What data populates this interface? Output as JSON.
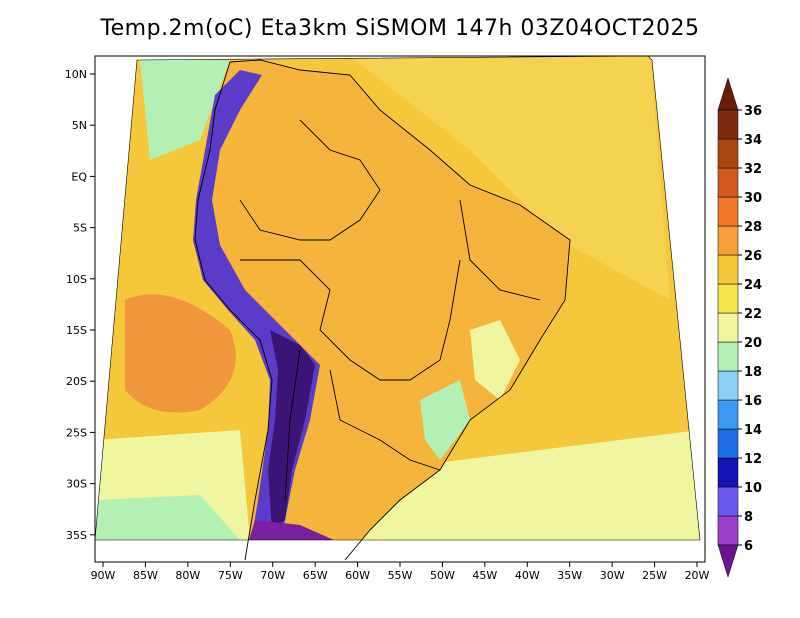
{
  "title": "Temp.2m(oC) Eta3km SiSMOM 147h 03Z04OCT2025",
  "map": {
    "lon_ticks": [
      "90W",
      "85W",
      "80W",
      "75W",
      "70W",
      "65W",
      "60W",
      "55W",
      "50W",
      "45W",
      "40W",
      "35W",
      "30W",
      "25W",
      "20W"
    ],
    "lat_ticks": [
      "10N",
      "5N",
      "EQ",
      "5S",
      "10S",
      "15S",
      "20S",
      "25S",
      "30S",
      "35S"
    ],
    "variable": "2 m temperature",
    "unit": "oC"
  },
  "colorbar": {
    "levels": [
      "6",
      "8",
      "10",
      "12",
      "14",
      "16",
      "18",
      "20",
      "22",
      "24",
      "26",
      "28",
      "30",
      "32",
      "34",
      "36"
    ],
    "colors": [
      "#7a1fa0",
      "#9a3fc8",
      "#6a5af0",
      "#1414b4",
      "#1e6ee6",
      "#3c9bf0",
      "#8ccff5",
      "#b4f0b4",
      "#f0f5a0",
      "#f5e650",
      "#f5c83c",
      "#f5a03c",
      "#f07828",
      "#d25a1e",
      "#aa4614",
      "#7d2d0f"
    ],
    "arrow_low": "#6a1490",
    "arrow_high": "#641e0a"
  },
  "field_colors": {
    "ocean_warm": "#f5c83c",
    "ocean_north": "#f5d250",
    "land_base": "#f5b43c",
    "pacific_hot": "#f0963c",
    "south_cool": "#f0f5a0",
    "andes_cold": "#5a3cc8",
    "andes_core": "#3c1478",
    "patagonia": "#7a1fa0",
    "coast_green": "#b4f0b4"
  }
}
